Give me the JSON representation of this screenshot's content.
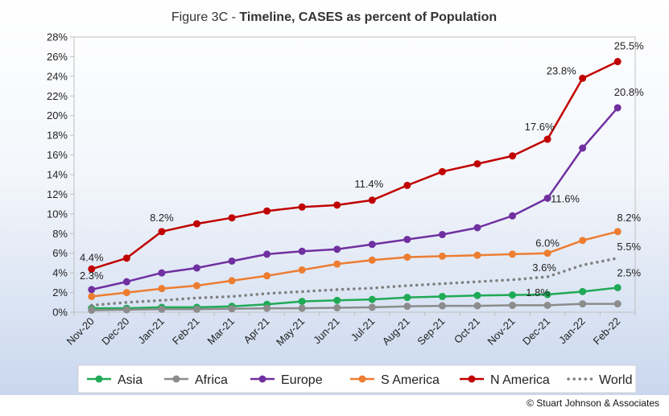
{
  "chart_data": {
    "type": "line",
    "title_prefix": "Figure 3C - ",
    "title_bold": "Timeline, CASES as percent of Population",
    "xlabel": "",
    "ylabel": "",
    "ylim": [
      0,
      28
    ],
    "y_ticks": [
      "0%",
      "2%",
      "4%",
      "6%",
      "8%",
      "10%",
      "12%",
      "14%",
      "16%",
      "18%",
      "20%",
      "22%",
      "24%",
      "26%",
      "28%"
    ],
    "x": [
      "Nov-20",
      "Dec-20",
      "Jan-21",
      "Feb-21",
      "Mar-21",
      "Apr-21",
      "May-21",
      "Jun-21",
      "Jul-21",
      "Aug-21",
      "Sep-21",
      "Oct-21",
      "Nov-21",
      "Dec-21",
      "Jan-22",
      "Feb-22"
    ],
    "grid": false,
    "legend_position": "bottom",
    "series": [
      {
        "name": "Asia",
        "color": "#1faa56",
        "style": "solid",
        "values": [
          0.4,
          0.4,
          0.5,
          0.5,
          0.6,
          0.8,
          1.1,
          1.2,
          1.3,
          1.5,
          1.6,
          1.7,
          1.75,
          1.8,
          2.1,
          2.5
        ]
      },
      {
        "name": "Africa",
        "color": "#8c8c8c",
        "style": "solid",
        "values": [
          0.2,
          0.25,
          0.3,
          0.3,
          0.35,
          0.4,
          0.4,
          0.45,
          0.5,
          0.6,
          0.65,
          0.65,
          0.7,
          0.7,
          0.85,
          0.85
        ]
      },
      {
        "name": "Europe",
        "color": "#7030a0",
        "style": "solid",
        "values": [
          2.3,
          3.1,
          4.0,
          4.5,
          5.2,
          5.9,
          6.2,
          6.4,
          6.9,
          7.4,
          7.9,
          8.6,
          9.8,
          11.6,
          16.7,
          20.8
        ]
      },
      {
        "name": "S America",
        "color": "#ed7d31",
        "style": "solid",
        "values": [
          1.6,
          2.0,
          2.4,
          2.7,
          3.2,
          3.7,
          4.3,
          4.9,
          5.3,
          5.6,
          5.7,
          5.8,
          5.9,
          6.0,
          7.3,
          8.2
        ]
      },
      {
        "name": "N America",
        "color": "#c00000",
        "style": "solid",
        "values": [
          4.4,
          5.5,
          8.2,
          9.0,
          9.6,
          10.3,
          10.7,
          10.9,
          11.4,
          12.9,
          14.3,
          15.1,
          15.9,
          17.6,
          23.8,
          25.5
        ]
      },
      {
        "name": "World",
        "color": "#7f7f7f",
        "style": "dotted",
        "values": [
          0.7,
          1.0,
          1.2,
          1.45,
          1.6,
          1.9,
          2.1,
          2.3,
          2.45,
          2.7,
          2.9,
          3.1,
          3.3,
          3.6,
          4.8,
          5.5
        ]
      }
    ],
    "annotations": [
      {
        "text": "4.4%",
        "series": "N America",
        "index": 0
      },
      {
        "text": "2.3%",
        "series": "Europe",
        "index": 0
      },
      {
        "text": "8.2%",
        "series": "N America",
        "index": 2
      },
      {
        "text": "11.4%",
        "series": "N America",
        "index": 8
      },
      {
        "text": "17.6%",
        "series": "N America",
        "index": 13
      },
      {
        "text": "23.8%",
        "series": "N America",
        "index": 14
      },
      {
        "text": "25.5%",
        "series": "N America",
        "index": 15
      },
      {
        "text": "20.8%",
        "series": "Europe",
        "index": 15
      },
      {
        "text": "11.6%",
        "series": "Europe",
        "index": 13
      },
      {
        "text": "6.0%",
        "series": "S America",
        "index": 13
      },
      {
        "text": "8.2%",
        "series": "S America",
        "index": 15
      },
      {
        "text": "3.6%",
        "series": "World",
        "index": 13
      },
      {
        "text": "5.5%",
        "series": "World",
        "index": 15
      },
      {
        "text": "1.8%",
        "series": "Asia",
        "index": 13
      },
      {
        "text": "2.5%",
        "series": "Asia",
        "index": 15
      }
    ]
  },
  "footer": {
    "copyright": "© Stuart Johnson & Associates"
  }
}
